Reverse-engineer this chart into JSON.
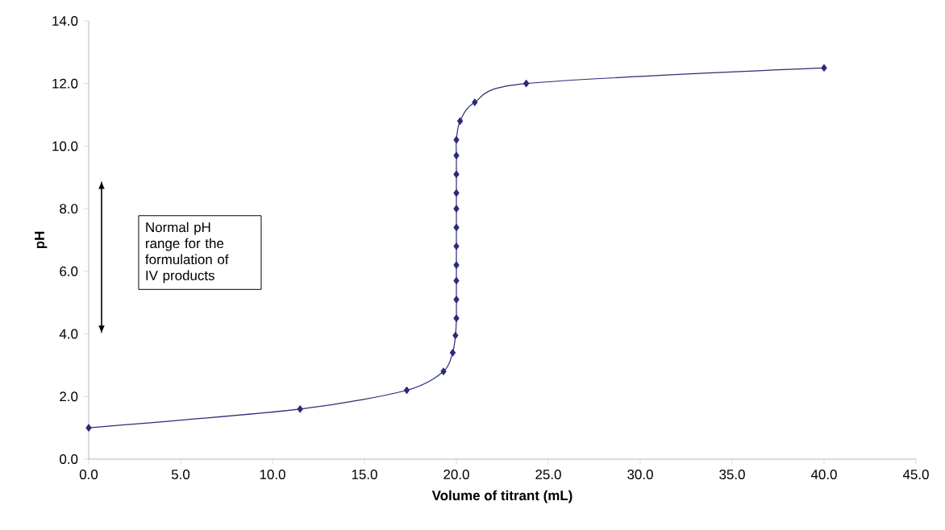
{
  "chart_data": {
    "type": "line",
    "xlabel": "Volume of titrant (mL)",
    "ylabel": "pH",
    "x": [
      0,
      11.5,
      17.3,
      19.3,
      19.8,
      19.95,
      20.0,
      20.0,
      20.0,
      20.0,
      20.0,
      20.0,
      20.0,
      20.0,
      20.0,
      20.0,
      20.0,
      20.2,
      21.0,
      23.8,
      40.0
    ],
    "series": [
      {
        "color": "#2b2b7a",
        "values": [
          1.0,
          1.6,
          2.2,
          2.8,
          3.4,
          3.95,
          4.5,
          5.1,
          5.7,
          6.2,
          6.8,
          7.4,
          8.0,
          8.5,
          9.1,
          9.7,
          10.2,
          10.8,
          11.4,
          12.0,
          12.5
        ]
      }
    ],
    "marker": "diamond",
    "grid": false,
    "legend": false,
    "xlim": [
      0,
      45
    ],
    "ylim": [
      0,
      14
    ],
    "xticks": [
      {
        "value": 0,
        "label": "0.0"
      },
      {
        "value": 5,
        "label": "5.0"
      },
      {
        "value": 10,
        "label": "10.0"
      },
      {
        "value": 15,
        "label": "15.0"
      },
      {
        "value": 20,
        "label": "20.0"
      },
      {
        "value": 25,
        "label": "25.0"
      },
      {
        "value": 30,
        "label": "30.0"
      },
      {
        "value": 35,
        "label": "35.0"
      },
      {
        "value": 40,
        "label": "40.0"
      },
      {
        "value": 45,
        "label": "45.0"
      }
    ],
    "yticks": [
      {
        "value": 0,
        "label": "0.0"
      },
      {
        "value": 2,
        "label": "2.0"
      },
      {
        "value": 4,
        "label": "4.0"
      },
      {
        "value": 6,
        "label": "6.0"
      },
      {
        "value": 8,
        "label": "8.0"
      },
      {
        "value": 10,
        "label": "10.0"
      },
      {
        "value": 12,
        "label": "12.0"
      },
      {
        "value": 14,
        "label": "14.0"
      }
    ],
    "annotations": [
      "Normal pH range for the formulation of IV products"
    ]
  }
}
